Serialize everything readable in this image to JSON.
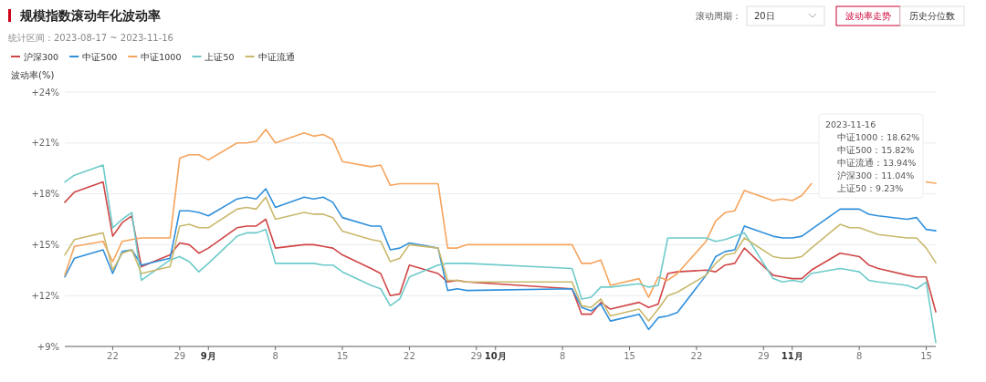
{
  "chart_data": {
    "type": "line",
    "title": "规模指数滚动年化波动率",
    "subtitle": "统计区间：2023-08-17 ~ 2023-11-16",
    "ylabel": "波动率(%)",
    "annotations": [
      "滚动周期：",
      "20日",
      "波动率走势",
      "历史分位数",
      "2023-11-16",
      "中证1000：18.62%",
      "中证500：15.82%",
      "中证流通：13.94%",
      "沪深300：11.04%",
      "上证50：9.23%"
    ],
    "x": [
      "2023-08-17",
      "2023-08-18",
      "2023-08-21",
      "2023-08-22",
      "2023-08-23",
      "2023-08-24",
      "2023-08-25",
      "2023-08-28",
      "2023-08-29",
      "2023-08-30",
      "2023-08-31",
      "2023-09-01",
      "2023-09-04",
      "2023-09-05",
      "2023-09-06",
      "2023-09-07",
      "2023-09-08",
      "2023-09-11",
      "2023-09-12",
      "2023-09-13",
      "2023-09-14",
      "2023-09-15",
      "2023-09-18",
      "2023-09-19",
      "2023-09-20",
      "2023-09-21",
      "2023-09-22",
      "2023-09-25",
      "2023-09-26",
      "2023-09-27",
      "2023-09-28",
      "2023-10-09",
      "2023-10-10",
      "2023-10-11",
      "2023-10-12",
      "2023-10-13",
      "2023-10-16",
      "2023-10-17",
      "2023-10-18",
      "2023-10-19",
      "2023-10-20",
      "2023-10-23",
      "2023-10-24",
      "2023-10-25",
      "2023-10-26",
      "2023-10-27",
      "2023-10-30",
      "2023-10-31",
      "2023-11-01",
      "2023-11-02",
      "2023-11-03",
      "2023-11-06",
      "2023-11-07",
      "2023-11-08",
      "2023-11-09",
      "2023-11-10",
      "2023-11-13",
      "2023-11-14",
      "2023-11-15",
      "2023-11-16"
    ],
    "series": [
      {
        "name": "沪深300",
        "color": "#d04646",
        "values": [
          17.5,
          18.1,
          18.7,
          15.5,
          16.3,
          16.7,
          13.7,
          14.4,
          15.1,
          15.0,
          14.5,
          14.8,
          16.0,
          16.1,
          16.1,
          16.5,
          14.8,
          15.0,
          15.0,
          14.9,
          14.8,
          14.4,
          13.6,
          13.3,
          12.0,
          12.1,
          13.8,
          13.3,
          12.8,
          12.9,
          12.8,
          12.4,
          10.9,
          10.9,
          11.6,
          11.2,
          11.6,
          11.3,
          11.5,
          13.3,
          13.4,
          13.5,
          13.4,
          13.8,
          13.9,
          14.8,
          13.2,
          13.1,
          13.0,
          13.0,
          13.5,
          14.5,
          14.4,
          14.3,
          13.8,
          13.6,
          13.2,
          13.1,
          13.1,
          11.04
        ]
      },
      {
        "name": "中证500",
        "color": "#2f8fdb",
        "values": [
          13.1,
          14.2,
          14.7,
          13.3,
          14.6,
          14.7,
          13.8,
          14.2,
          17.0,
          17.0,
          16.9,
          16.7,
          17.7,
          17.8,
          17.7,
          18.3,
          17.2,
          17.8,
          17.7,
          17.8,
          17.5,
          16.6,
          16.1,
          16.1,
          14.7,
          14.8,
          15.1,
          14.8,
          12.3,
          12.4,
          12.3,
          12.4,
          11.3,
          11.1,
          11.5,
          10.5,
          10.9,
          10.0,
          10.7,
          10.8,
          11.0,
          13.2,
          14.3,
          14.6,
          14.7,
          16.1,
          15.5,
          15.4,
          15.4,
          15.5,
          15.9,
          17.1,
          17.1,
          17.1,
          16.8,
          16.7,
          16.5,
          16.6,
          15.9,
          15.82
        ]
      },
      {
        "name": "中证1000",
        "color": "#f6a45c",
        "values": [
          13.2,
          14.9,
          15.2,
          14.0,
          15.2,
          15.3,
          15.4,
          15.4,
          20.1,
          20.3,
          20.3,
          20.0,
          21.0,
          21.0,
          21.1,
          21.8,
          21.0,
          21.6,
          21.4,
          21.5,
          21.2,
          19.9,
          19.6,
          19.7,
          18.5,
          18.6,
          18.6,
          18.6,
          14.8,
          14.8,
          15.0,
          15.0,
          13.9,
          13.9,
          14.1,
          12.6,
          13.0,
          11.9,
          13.1,
          12.9,
          13.3,
          15.2,
          16.4,
          16.9,
          17.0,
          18.2,
          17.6,
          17.7,
          17.6,
          17.9,
          18.6,
          null,
          null,
          null,
          null,
          null,
          null,
          null,
          18.7,
          18.62
        ]
      },
      {
        "name": "上证50",
        "color": "#6ecaca",
        "values": [
          18.7,
          19.1,
          19.7,
          16.0,
          16.5,
          16.9,
          12.9,
          14.1,
          14.3,
          14.0,
          13.4,
          13.9,
          15.5,
          15.7,
          15.7,
          15.9,
          13.9,
          13.9,
          13.9,
          13.8,
          13.8,
          13.4,
          12.6,
          12.4,
          11.4,
          11.8,
          13.1,
          13.8,
          13.9,
          13.9,
          13.9,
          13.6,
          11.8,
          11.9,
          12.5,
          12.5,
          12.7,
          12.5,
          12.6,
          15.4,
          15.4,
          15.4,
          15.2,
          15.3,
          15.5,
          15.7,
          13.0,
          12.8,
          12.9,
          12.8,
          13.3,
          13.6,
          13.5,
          13.4,
          12.9,
          12.8,
          12.6,
          12.4,
          12.8,
          9.23
        ]
      },
      {
        "name": "中证流通",
        "color": "#c9b86c",
        "values": [
          14.4,
          15.3,
          15.7,
          13.5,
          14.5,
          14.7,
          13.3,
          13.7,
          16.1,
          16.2,
          16.0,
          16.0,
          17.1,
          17.2,
          17.1,
          17.8,
          16.5,
          16.9,
          16.8,
          16.8,
          16.6,
          15.8,
          15.3,
          15.2,
          14.0,
          14.2,
          15.0,
          14.8,
          12.9,
          12.9,
          12.8,
          12.8,
          11.4,
          11.3,
          11.8,
          10.8,
          11.2,
          10.5,
          11.2,
          12.0,
          12.2,
          13.2,
          13.9,
          14.4,
          14.5,
          15.4,
          14.3,
          14.2,
          14.2,
          14.3,
          14.8,
          16.2,
          16.0,
          16.0,
          15.8,
          15.6,
          15.4,
          15.4,
          14.8,
          13.94
        ]
      }
    ],
    "xlim": [
      "2023-08-17",
      "2023-11-16"
    ],
    "xticks": [
      {
        "value": "2023-08-22",
        "label": "22"
      },
      {
        "value": "2023-08-29",
        "label": "29"
      },
      {
        "value": "2023-09-01",
        "label": "9月"
      },
      {
        "value": "2023-09-08",
        "label": "8"
      },
      {
        "value": "2023-09-15",
        "label": "15"
      },
      {
        "value": "2023-09-22",
        "label": "22"
      },
      {
        "value": "2023-09-29",
        "label": "29"
      },
      {
        "value": "2023-10-01",
        "label": "10月"
      },
      {
        "value": "2023-10-08",
        "label": "8"
      },
      {
        "value": "2023-10-15",
        "label": "15"
      },
      {
        "value": "2023-10-22",
        "label": "22"
      },
      {
        "value": "2023-10-29",
        "label": "29"
      },
      {
        "value": "2023-11-01",
        "label": "11月"
      },
      {
        "value": "2023-11-08",
        "label": "8"
      },
      {
        "value": "2023-11-15",
        "label": "15"
      }
    ],
    "ylim": [
      9,
      24
    ],
    "yticks": [
      {
        "value": 9,
        "label": "+9%"
      },
      {
        "value": 12,
        "label": "+12%"
      },
      {
        "value": 15,
        "label": "+15%"
      },
      {
        "value": 18,
        "label": "+18%"
      },
      {
        "value": 21,
        "label": "+21%"
      },
      {
        "value": 24,
        "label": "+24%"
      }
    ],
    "grid": "y",
    "legend": "top left"
  }
}
